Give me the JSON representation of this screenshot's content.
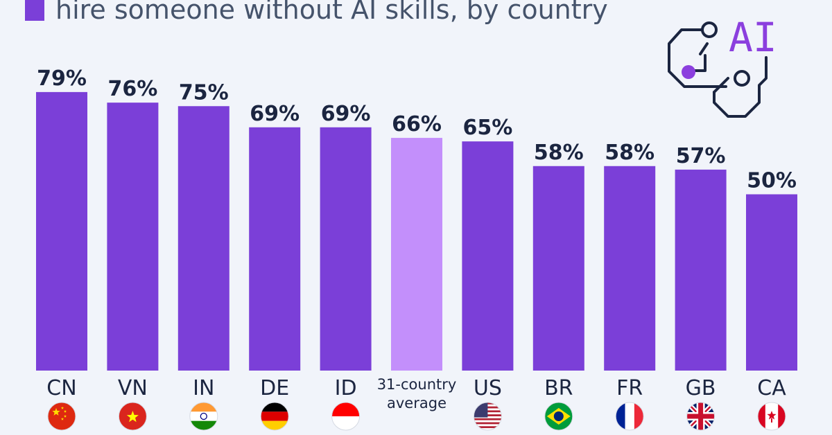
{
  "legend": {
    "text": "hire someone without AI skills, by country",
    "swatch_color": "#7b3fd8"
  },
  "logo": {
    "text": "AI",
    "icon": "ai-circuit-icon"
  },
  "colors": {
    "bar": "#7b3fd8",
    "highlight_bar": "#c38ffb",
    "label": "#1b2540"
  },
  "chart_data": {
    "type": "bar",
    "categories": [
      "CN",
      "VN",
      "IN",
      "DE",
      "ID",
      "31-country average",
      "US",
      "BR",
      "FR",
      "GB",
      "CA"
    ],
    "category_lines": [
      [
        "CN"
      ],
      [
        "VN"
      ],
      [
        "IN"
      ],
      [
        "DE"
      ],
      [
        "ID"
      ],
      [
        "31-country",
        "average"
      ],
      [
        "US"
      ],
      [
        "BR"
      ],
      [
        "FR"
      ],
      [
        "GB"
      ],
      [
        "CA"
      ]
    ],
    "values": [
      79,
      76,
      75,
      69,
      69,
      66,
      65,
      58,
      58,
      57,
      50
    ],
    "data_labels": [
      "79%",
      "76%",
      "75%",
      "69%",
      "69%",
      "66%",
      "65%",
      "58%",
      "58%",
      "57%",
      "50%"
    ],
    "highlight_index": 5,
    "flags": [
      "china-flag-icon",
      "vietnam-flag-icon",
      "india-flag-icon",
      "germany-flag-icon",
      "indonesia-flag-icon",
      "",
      "usa-flag-icon",
      "brazil-flag-icon",
      "france-flag-icon",
      "uk-flag-icon",
      "canada-flag-icon"
    ],
    "ylim": [
      0,
      100
    ],
    "grid": false,
    "legend_placement": "top-left"
  }
}
